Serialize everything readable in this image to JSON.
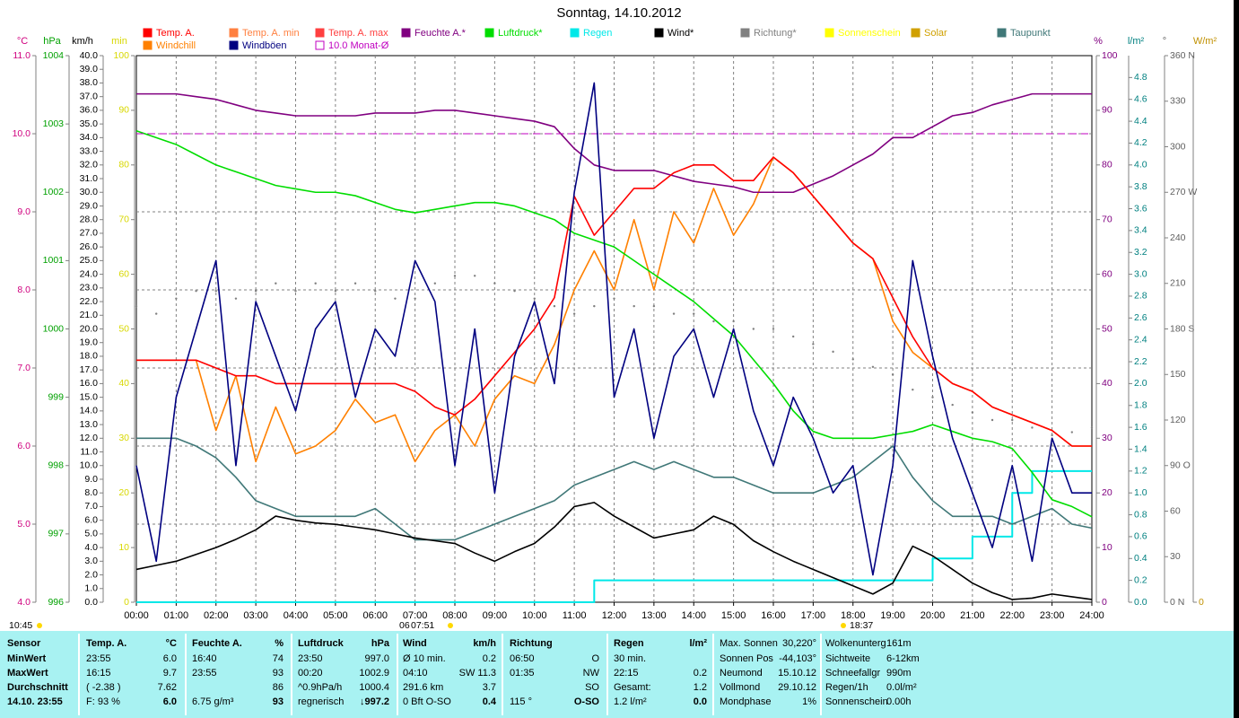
{
  "chart_data": {
    "type": "line",
    "title": "Sonntag, 14.10.2012",
    "x": [
      0,
      0.5,
      1,
      1.5,
      2,
      2.5,
      3,
      3.5,
      4,
      4.5,
      5,
      5.5,
      6,
      6.5,
      7,
      7.5,
      8,
      8.5,
      9,
      9.5,
      10,
      10.5,
      11,
      11.5,
      12,
      12.5,
      13,
      13.5,
      14,
      14.5,
      15,
      15.5,
      16,
      16.5,
      17,
      17.5,
      18,
      18.5,
      19,
      19.5,
      20,
      20.5,
      21,
      21.5,
      22,
      22.5,
      23,
      23.5,
      24
    ],
    "xlim": [
      0,
      24
    ],
    "xticks": [
      {
        "value": 0,
        "label": "00:00"
      },
      {
        "value": 1,
        "label": "01:00"
      },
      {
        "value": 2,
        "label": "02:00"
      },
      {
        "value": 3,
        "label": "03:00"
      },
      {
        "value": 4,
        "label": "04:00"
      },
      {
        "value": 5,
        "label": "05:00"
      },
      {
        "value": 6,
        "label": "06:00"
      },
      {
        "value": 7,
        "label": "07:00"
      },
      {
        "value": 8,
        "label": "08:00"
      },
      {
        "value": 9,
        "label": "09:00"
      },
      {
        "value": 10,
        "label": "10:00"
      },
      {
        "value": 11,
        "label": "11:00"
      },
      {
        "value": 12,
        "label": "12:00"
      },
      {
        "value": 13,
        "label": "13:00"
      },
      {
        "value": 14,
        "label": "14:00"
      },
      {
        "value": 15,
        "label": "15:00"
      },
      {
        "value": 16,
        "label": "16:00"
      },
      {
        "value": 17,
        "label": "17:00"
      },
      {
        "value": 18,
        "label": "18:00"
      },
      {
        "value": 19,
        "label": "19:00"
      },
      {
        "value": 20,
        "label": "20:00"
      },
      {
        "value": 21,
        "label": "21:00"
      },
      {
        "value": 22,
        "label": "22:00"
      },
      {
        "value": 23,
        "label": "23:00"
      },
      {
        "value": 24,
        "label": "24:00"
      }
    ],
    "grid": "°C",
    "axes": [
      {
        "label": "°C",
        "color": "#d0007f",
        "lim": [
          4,
          11
        ],
        "ticks": [
          {
            "value": 4,
            "label": "4.0"
          },
          {
            "value": 5,
            "label": "5.0"
          },
          {
            "value": 6,
            "label": "6.0"
          },
          {
            "value": 7,
            "label": "7.0"
          },
          {
            "value": 8,
            "label": "8.0"
          },
          {
            "value": 9,
            "label": "9.0"
          },
          {
            "value": 10,
            "label": "10.0"
          },
          {
            "value": 11,
            "label": "11.0"
          }
        ]
      },
      {
        "label": "hPa",
        "color": "#00a000",
        "lim": [
          996,
          1004
        ],
        "ticks": [
          996,
          997,
          998,
          999,
          1000,
          1001,
          1002,
          1003,
          1004
        ]
      },
      {
        "label": "km/h",
        "color": "#000000",
        "lim": [
          0,
          40
        ],
        "ticks": [
          {
            "value": 0,
            "label": "0.0"
          },
          {
            "value": 1,
            "label": "1.0"
          },
          {
            "value": 2,
            "label": "2.0"
          },
          {
            "value": 3,
            "label": "3.0"
          },
          {
            "value": 4,
            "label": "4.0"
          },
          {
            "value": 5,
            "label": "5.0"
          },
          {
            "value": 6,
            "label": "6.0"
          },
          {
            "value": 7,
            "label": "7.0"
          },
          {
            "value": 8,
            "label": "8.0"
          },
          {
            "value": 9,
            "label": "9.0"
          },
          {
            "value": 10,
            "label": "10.0"
          },
          {
            "value": 11,
            "label": "11.0"
          },
          {
            "value": 12,
            "label": "12.0"
          },
          {
            "value": 13,
            "label": "13.0"
          },
          {
            "value": 14,
            "label": "14.0"
          },
          {
            "value": 15,
            "label": "15.0"
          },
          {
            "value": 16,
            "label": "16.0"
          },
          {
            "value": 17,
            "label": "17.0"
          },
          {
            "value": 18,
            "label": "18.0"
          },
          {
            "value": 19,
            "label": "19.0"
          },
          {
            "value": 20,
            "label": "20.0"
          },
          {
            "value": 21,
            "label": "21.0"
          },
          {
            "value": 22,
            "label": "22.0"
          },
          {
            "value": 23,
            "label": "23.0"
          },
          {
            "value": 24,
            "label": "24.0"
          },
          {
            "value": 25,
            "label": "25.0"
          },
          {
            "value": 26,
            "label": "26.0"
          },
          {
            "value": 27,
            "label": "27.0"
          },
          {
            "value": 28,
            "label": "28.0"
          },
          {
            "value": 29,
            "label": "29.0"
          },
          {
            "value": 30,
            "label": "30.0"
          },
          {
            "value": 31,
            "label": "31.0"
          },
          {
            "value": 32,
            "label": "32.0"
          },
          {
            "value": 33,
            "label": "33.0"
          },
          {
            "value": 34,
            "label": "34.0"
          },
          {
            "value": 35,
            "label": "35.0"
          },
          {
            "value": 36,
            "label": "36.0"
          },
          {
            "value": 37,
            "label": "37.0"
          },
          {
            "value": 38,
            "label": "38.0"
          },
          {
            "value": 39,
            "label": "39.0"
          },
          {
            "value": 40,
            "label": "40.0"
          }
        ]
      },
      {
        "label": "min",
        "color": "#d8d800",
        "lim": [
          0,
          100
        ],
        "ticks": [
          0,
          10,
          20,
          30,
          40,
          50,
          60,
          70,
          80,
          90,
          100
        ]
      },
      {
        "label": "%",
        "color": "#800080",
        "lim": [
          0,
          100
        ],
        "ticks": [
          0,
          10,
          20,
          30,
          40,
          50,
          60,
          70,
          80,
          90,
          100
        ]
      },
      {
        "label": "l/m²",
        "color": "#008080",
        "lim": [
          0,
          5
        ],
        "ticks": [
          {
            "value": 0,
            "label": "0.0"
          },
          0.2,
          0.4,
          0.6,
          0.8,
          {
            "value": 1,
            "label": "1.0"
          },
          1.2,
          1.4,
          1.6,
          1.8,
          {
            "value": 2,
            "label": "2.0"
          },
          2.2,
          2.4,
          2.6,
          2.8,
          {
            "value": 3,
            "label": "3.0"
          },
          3.2,
          3.4,
          3.6,
          3.8,
          {
            "value": 4,
            "label": "4.0"
          },
          4.2,
          4.4,
          4.6,
          4.8
        ]
      },
      {
        "label": "°",
        "color": "#606060",
        "lim": [
          0,
          360
        ],
        "ticks": [
          {
            "value": 0,
            "label": "0 N"
          },
          30,
          60,
          {
            "value": 90,
            "label": "90 O"
          },
          120,
          150,
          {
            "value": 180,
            "label": "180 S"
          },
          210,
          240,
          {
            "value": 270,
            "label": "270 W"
          },
          300,
          330,
          {
            "value": 360,
            "label": "360 N"
          }
        ]
      },
      {
        "label": "W/m²",
        "color": "#c09000",
        "ticks": [
          0
        ]
      }
    ],
    "series": [
      {
        "name": "Temp. A.",
        "color": "#ff0000",
        "axis": "°C",
        "values": [
          7.1,
          7.1,
          7.1,
          7.1,
          7.0,
          6.9,
          6.9,
          6.8,
          6.8,
          6.8,
          6.8,
          6.8,
          6.8,
          6.8,
          6.7,
          6.5,
          6.4,
          6.6,
          6.9,
          7.2,
          7.5,
          7.9,
          9.2,
          8.7,
          9.0,
          9.3,
          9.3,
          9.5,
          9.6,
          9.6,
          9.4,
          9.4,
          9.7,
          9.5,
          9.2,
          8.9,
          8.6,
          8.4,
          7.9,
          7.4,
          7.0,
          6.8,
          6.7,
          6.5,
          6.4,
          6.3,
          6.2,
          6.0,
          6.0
        ]
      },
      {
        "name": "Temp. A. min",
        "color": "#ff8040",
        "axis": "°C"
      },
      {
        "name": "Temp. A. max",
        "color": "#ff4040",
        "axis": "°C"
      },
      {
        "name": "Feuchte A.*",
        "color": "#800080",
        "axis": "%",
        "values": [
          93,
          93,
          93,
          92.5,
          92,
          91,
          90,
          89.5,
          89,
          89,
          89,
          89,
          89.5,
          89.5,
          89.5,
          90,
          90,
          89.5,
          89,
          88.5,
          88,
          87,
          83,
          80,
          79,
          79,
          79,
          78,
          77,
          76.5,
          76,
          75,
          75,
          75,
          76.5,
          78,
          80,
          82,
          85,
          85,
          87,
          89,
          89.6,
          91,
          92,
          93,
          93,
          93,
          93
        ]
      },
      {
        "name": "Luftdruck*",
        "color": "#00dd00",
        "axis": "hPa",
        "values": [
          1002.9,
          1002.8,
          1002.7,
          1002.55,
          1002.4,
          1002.3,
          1002.2,
          1002.1,
          1002.05,
          1002.0,
          1002.0,
          1001.95,
          1001.85,
          1001.75,
          1001.7,
          1001.75,
          1001.8,
          1001.85,
          1001.85,
          1001.8,
          1001.7,
          1001.6,
          1001.4,
          1001.3,
          1001.2,
          1001.0,
          1000.8,
          1000.6,
          1000.4,
          1000.15,
          999.9,
          999.55,
          999.2,
          998.8,
          998.5,
          998.4,
          998.4,
          998.4,
          998.45,
          998.5,
          998.6,
          998.5,
          998.4,
          998.35,
          998.25,
          997.9,
          997.5,
          997.4,
          997.25
        ]
      },
      {
        "name": "Regen",
        "color": "#00e8e8",
        "axis": "l/m²",
        "line_style": "step",
        "values": [
          0,
          0,
          0,
          0,
          0,
          0,
          0,
          0,
          0,
          0,
          0,
          0,
          0,
          0,
          0,
          0,
          0,
          0,
          0,
          0,
          0,
          0,
          0,
          0.2,
          0.2,
          0.2,
          0.2,
          0.2,
          0.2,
          0.2,
          0.2,
          0.2,
          0.2,
          0.2,
          0.2,
          0.2,
          0.2,
          0.2,
          0.2,
          0.2,
          0.4,
          0.4,
          0.6,
          0.6,
          1.0,
          1.2,
          1.2,
          1.2,
          1.2
        ]
      },
      {
        "name": "Wind*",
        "color": "#000000",
        "axis": "km/h",
        "values": [
          2.4,
          2.7,
          3.0,
          3.5,
          4.0,
          4.6,
          5.3,
          6.3,
          6.0,
          5.8,
          5.7,
          5.5,
          5.3,
          5.0,
          4.7,
          4.5,
          4.3,
          3.6,
          3.0,
          3.7,
          4.3,
          5.5,
          7.0,
          7.3,
          6.3,
          5.5,
          4.7,
          5.0,
          5.3,
          6.3,
          5.7,
          4.5,
          3.7,
          3.0,
          2.4,
          1.8,
          1.2,
          0.6,
          1.4,
          4.1,
          3.4,
          2.4,
          1.4,
          0.7,
          0.2,
          0.3,
          0.6,
          0.4,
          0.2
        ]
      },
      {
        "name": "Richtung*",
        "color": "#808080",
        "axis": "°",
        "line_style": "dots",
        "values": [
          195,
          190,
          200,
          205,
          205,
          200,
          205,
          210,
          205,
          210,
          205,
          210,
          205,
          200,
          200,
          210,
          215,
          215,
          210,
          205,
          200,
          195,
          190,
          195,
          200,
          195,
          195,
          190,
          190,
          185,
          185,
          180,
          180,
          175,
          170,
          165,
          160,
          155,
          150,
          140,
          135,
          130,
          125,
          120,
          120,
          115,
          110,
          112,
          115
        ]
      },
      {
        "name": "Sonnenschein",
        "color": "#ffff00",
        "axis": "min"
      },
      {
        "name": "Solar",
        "color": "#d0a000",
        "axis": "W/m²"
      },
      {
        "name": "Taupunkt",
        "color": "#407878",
        "axis": "°C",
        "values": [
          6.1,
          6.1,
          6.1,
          6.0,
          5.85,
          5.6,
          5.3,
          5.2,
          5.1,
          5.1,
          5.1,
          5.1,
          5.2,
          5.0,
          4.8,
          4.8,
          4.8,
          4.9,
          5.0,
          5.1,
          5.2,
          5.3,
          5.5,
          5.6,
          5.7,
          5.8,
          5.7,
          5.8,
          5.7,
          5.6,
          5.6,
          5.5,
          5.4,
          5.4,
          5.4,
          5.5,
          5.6,
          5.8,
          6.0,
          5.6,
          5.3,
          5.1,
          5.1,
          5.1,
          5.0,
          5.1,
          5.2,
          5.0,
          4.95
        ]
      },
      {
        "name": "Windchill",
        "color": "#ff8000",
        "axis": "°C",
        "values": [
          7.1,
          7.1,
          7.1,
          7.1,
          6.2,
          6.9,
          5.8,
          6.5,
          5.9,
          6.0,
          6.2,
          6.6,
          6.3,
          6.4,
          5.8,
          6.2,
          6.4,
          6.0,
          6.6,
          6.9,
          6.8,
          7.3,
          8.0,
          8.5,
          8.0,
          8.9,
          8.0,
          9.0,
          8.6,
          9.3,
          8.7,
          9.1,
          9.7,
          9.5,
          9.2,
          8.9,
          8.6,
          8.4,
          7.6,
          7.2,
          7.0,
          6.8,
          6.7,
          6.5,
          6.4,
          6.3,
          6.2,
          6.0,
          6.0
        ]
      },
      {
        "name": "Windböen",
        "color": "#000080",
        "axis": "km/h",
        "values": [
          10,
          3,
          15,
          20,
          25,
          10,
          22,
          18,
          14,
          20,
          22,
          15,
          20,
          18,
          25,
          22,
          10,
          20,
          8,
          18,
          22,
          16,
          30,
          38,
          15,
          20,
          12,
          18,
          20,
          15,
          20,
          14,
          10,
          15,
          12,
          8,
          10,
          2,
          10,
          25,
          18,
          12,
          8,
          4,
          10,
          3,
          12,
          8,
          8
        ]
      },
      {
        "name": "10.0 Monat-Ø",
        "color": "#c000c0",
        "axis": "°C",
        "line_style": "dashed",
        "value": 10.0
      }
    ],
    "annotations": [
      "10:45",
      "06",
      "07:51",
      "18:37"
    ]
  },
  "table": {
    "rows": [
      [
        "Sensor",
        "Temp. A.",
        "°C",
        "Feuchte A.",
        "%",
        "Luftdruck",
        "hPa",
        "Wind",
        "km/h",
        "Richtung",
        null,
        "Regen",
        "l/m²"
      ],
      [
        "MinWert",
        "23:55",
        "6.0",
        "16:40",
        "74",
        "23:50",
        "997.0",
        "Ø 10 min.",
        "0.2",
        "06:50",
        "O",
        "30 min.",
        null
      ],
      [
        "MaxWert",
        "16:15",
        "9.7",
        "23:55",
        "93",
        "00:20",
        "1002.9",
        "04:10",
        "SW 11.3",
        "01:35",
        "NW",
        "22:15",
        "0.2"
      ],
      [
        "Durchschnitt",
        "( -2.38 )",
        "7.62",
        null,
        "86",
        "^0.9hPa/h",
        "1000.4",
        "291.6 km",
        "3.7",
        null,
        "SO",
        "Gesamt:",
        "1.2"
      ],
      [
        "14.10. 23:55",
        "F: 93 %",
        "6.0",
        "6.75 g/m³",
        "93",
        "regnerisch",
        "↓997.2",
        "0 Bft O-SO",
        "0.4",
        "115 °",
        "O-SO",
        "1.2 l/m²",
        "0.0"
      ]
    ]
  },
  "info": {
    "rows": [
      [
        "Max. Sonnen",
        "30,220°"
      ],
      [
        "Sonnen Pos",
        "-44,103°"
      ],
      [
        "Neumond",
        "15.10.12"
      ],
      [
        "Vollmond",
        "29.10.12"
      ],
      [
        "Mondphase",
        "1%"
      ],
      [
        "Wolkenunterg",
        "161m"
      ],
      [
        "Sichtweite",
        "6-12km"
      ],
      [
        "Schneefallgr",
        "990m"
      ],
      [
        "Regen/1h",
        "0.0l/m²"
      ],
      [
        "Sonnenschein",
        "0.00h"
      ]
    ]
  }
}
